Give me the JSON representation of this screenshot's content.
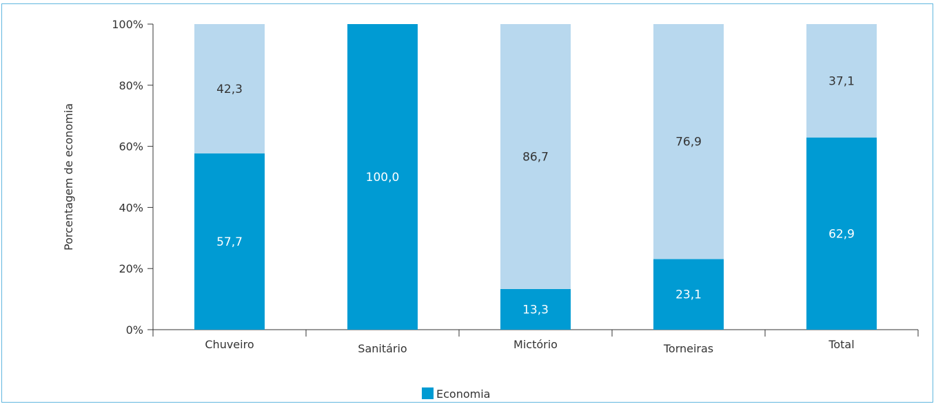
{
  "chart_data": {
    "type": "bar",
    "stacked": true,
    "ylabel": "Porcentagem de economia",
    "ylim": [
      0,
      100
    ],
    "yticks": [
      "0%",
      "20%",
      "40%",
      "60%",
      "80%",
      "100%"
    ],
    "categories": [
      "Chuveiro",
      "Sanitário",
      "Mictório",
      "Torneiras",
      "Total"
    ],
    "series": [
      {
        "name": "Economia",
        "color": "#009bd3",
        "values": [
          57.7,
          100.0,
          13.3,
          23.1,
          62.9
        ],
        "labels": [
          "57,7",
          "100,0",
          "13,3",
          "23,1",
          "62,9"
        ]
      },
      {
        "color": "#b8d8ee",
        "values": [
          42.3,
          0,
          86.7,
          76.9,
          37.1
        ],
        "labels": [
          "42,3",
          "",
          "86,7",
          "76,9",
          "37,1"
        ]
      }
    ],
    "legend": {
      "position": "bottom",
      "items": [
        "Economia"
      ]
    }
  }
}
